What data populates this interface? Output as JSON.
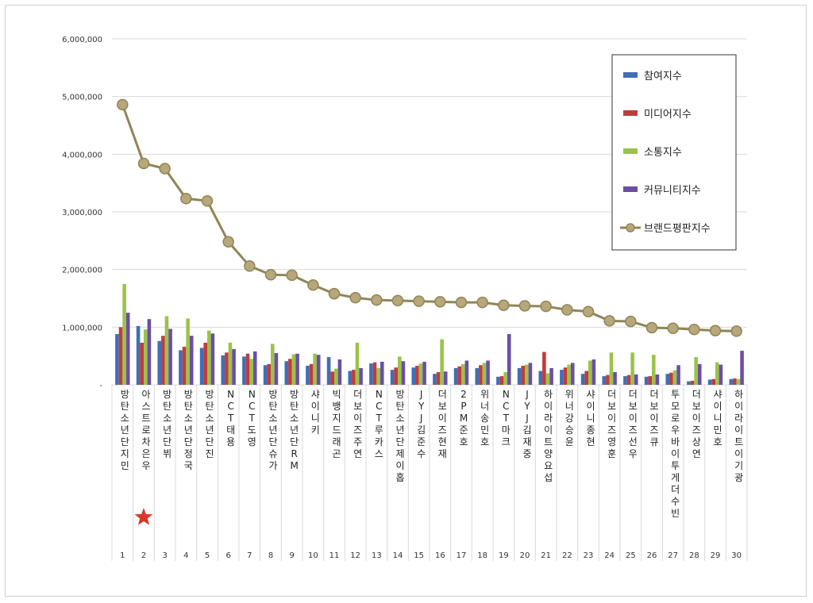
{
  "colors": {
    "participation": "#3f6fb5",
    "media": "#c23b3b",
    "communication": "#9bc34a",
    "community": "#6b4fa3",
    "brand": "#b7a77a",
    "star": "#d9372b"
  },
  "icons": {
    "highlight": "red-star-icon"
  },
  "chart_data": {
    "type": "bar",
    "ylim": [
      0,
      6000000
    ],
    "yticks": [
      "6,000,000",
      "5,000,000",
      "4,000,000",
      "3,000,000",
      "2,000,000",
      "1,000,000",
      "-"
    ],
    "ytick_values": [
      6000000,
      5000000,
      4000000,
      3000000,
      2000000,
      1000000,
      0
    ],
    "grid": true,
    "legend_position": "top-right",
    "categories": [
      "방탄소년단 지민",
      "아스트로 차은우",
      "방탄소년단 뷔",
      "방탄소년단 정국",
      "방탄소년단 진",
      "NCT 태용",
      "NCT 도영",
      "방탄소년단 슈가",
      "방탄소년단 RM",
      "샤이니 키",
      "빅뱅 지드래곤",
      "더보이즈 주연",
      "NCT 루카스",
      "방탄소년단 제이홉",
      "JYJ 김준수",
      "더보이즈 현재",
      "2PM 준호",
      "위너 송민호",
      "NCT 마크",
      "JYJ 김재중",
      "하이라이트 양요섭",
      "위너 강승윤",
      "샤이니 종현",
      "더보이즈 영훈",
      "더보이즈 선우",
      "더보이즈 큐",
      "투모로우바이투게더 수빈",
      "더보이즈 상연",
      "샤이니 민호",
      "하이라이트 이기광"
    ],
    "ranks": [
      "1",
      "2",
      "3",
      "4",
      "5",
      "6",
      "7",
      "8",
      "9",
      "10",
      "11",
      "12",
      "13",
      "14",
      "15",
      "16",
      "17",
      "18",
      "19",
      "20",
      "21",
      "22",
      "23",
      "24",
      "25",
      "26",
      "27",
      "28",
      "29",
      "30"
    ],
    "highlight_index": 1,
    "series": [
      {
        "name": "참여지수",
        "type": "bar",
        "values": [
          880000,
          1020000,
          760000,
          600000,
          640000,
          510000,
          490000,
          340000,
          410000,
          330000,
          480000,
          240000,
          370000,
          260000,
          300000,
          190000,
          290000,
          290000,
          140000,
          290000,
          240000,
          260000,
          190000,
          150000,
          150000,
          140000,
          190000,
          60000,
          90000,
          100000
        ]
      },
      {
        "name": "미디어지수",
        "type": "bar",
        "values": [
          1000000,
          730000,
          850000,
          660000,
          730000,
          560000,
          540000,
          360000,
          450000,
          360000,
          230000,
          260000,
          390000,
          300000,
          330000,
          220000,
          320000,
          340000,
          150000,
          330000,
          570000,
          300000,
          240000,
          170000,
          170000,
          150000,
          210000,
          70000,
          100000,
          110000
        ]
      },
      {
        "name": "소통지수",
        "type": "bar",
        "values": [
          1750000,
          960000,
          1190000,
          1150000,
          940000,
          730000,
          450000,
          710000,
          530000,
          540000,
          280000,
          730000,
          290000,
          490000,
          370000,
          790000,
          360000,
          380000,
          220000,
          350000,
          200000,
          350000,
          420000,
          560000,
          560000,
          520000,
          250000,
          480000,
          390000,
          100000
        ]
      },
      {
        "name": "커뮤니티지수",
        "type": "bar",
        "values": [
          1250000,
          1140000,
          970000,
          850000,
          890000,
          620000,
          580000,
          550000,
          540000,
          520000,
          440000,
          290000,
          400000,
          410000,
          400000,
          230000,
          420000,
          420000,
          880000,
          380000,
          290000,
          380000,
          440000,
          220000,
          180000,
          180000,
          340000,
          360000,
          350000,
          590000
        ]
      },
      {
        "name": "브랜드평판지수",
        "type": "line",
        "values": [
          4860000,
          3840000,
          3750000,
          3230000,
          3190000,
          2480000,
          2060000,
          1910000,
          1900000,
          1730000,
          1580000,
          1510000,
          1470000,
          1460000,
          1450000,
          1440000,
          1430000,
          1430000,
          1380000,
          1370000,
          1360000,
          1300000,
          1270000,
          1110000,
          1100000,
          990000,
          980000,
          960000,
          940000,
          930000
        ]
      }
    ]
  }
}
